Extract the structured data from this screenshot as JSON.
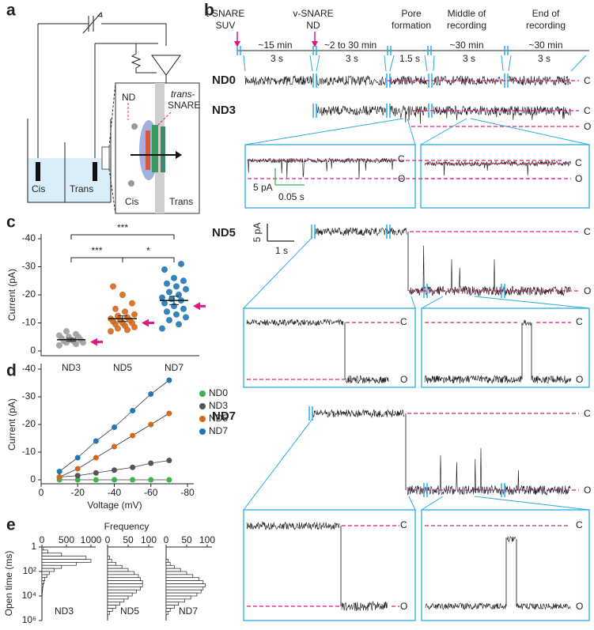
{
  "panel_labels": [
    "a",
    "b",
    "c",
    "d",
    "e"
  ],
  "diagram": {
    "nd": "ND",
    "trans_snare_1": "trans-",
    "trans_snare_2": "SNARE",
    "cis": "Cis",
    "trans": "Trans",
    "inset_cis": "Cis",
    "inset_trans": "Trans"
  },
  "recordings": {
    "stages": [
      [
        "t-SNARE",
        "SUV"
      ],
      [
        "v-SNARE",
        "ND"
      ],
      [
        "Pore",
        "formation"
      ],
      [
        "Middle of",
        "recording"
      ],
      [
        "End of",
        "recording"
      ]
    ],
    "durations": [
      "~15 min",
      "~2 to 30 min",
      "~30 min",
      "~30 min"
    ],
    "segment_spans": [
      "3 s",
      "3 s",
      "1.5 s",
      "3 s",
      "3 s"
    ],
    "rows": [
      "ND0",
      "ND3",
      "ND5",
      "ND7"
    ],
    "state_labels": {
      "closed": "C",
      "open": "O"
    },
    "scale_bars": [
      {
        "y": "5 pA",
        "x": "0.05 s"
      },
      {
        "y": "5 pA",
        "x": "1 s"
      }
    ]
  },
  "chart_data": [
    {
      "type": "strip",
      "ylabel": "Current (pA)",
      "categories": [
        "ND3",
        "ND5",
        "ND7"
      ],
      "colors": [
        "#9e9e9e",
        "#d2691e",
        "#1f77b4"
      ],
      "values": [
        [
          -2,
          -2.5,
          -3,
          -3,
          -3.5,
          -3.5,
          -4,
          -4,
          -4.5,
          -5,
          -5,
          -5.5,
          -6,
          -7
        ],
        [
          -7,
          -7.5,
          -8,
          -8.5,
          -9,
          -9.5,
          -10,
          -10,
          -10.5,
          -11,
          -11,
          -11.5,
          -12,
          -12.5,
          -13,
          -14,
          -15,
          -17,
          -20,
          -23
        ],
        [
          -8,
          -9.5,
          -11,
          -12,
          -13,
          -14,
          -15,
          -16,
          -17,
          -18,
          -18.5,
          -19,
          -20,
          -21,
          -22,
          -23,
          -24,
          -25,
          -26,
          -29,
          -31
        ]
      ],
      "means": [
        -4,
        -11.5,
        -18
      ],
      "sem": [
        0.5,
        1,
        1.5
      ],
      "highlight": [
        -3.2,
        -10,
        -16
      ],
      "highlight_color": "#e0197d",
      "significance": [
        "***",
        "*",
        "***"
      ],
      "ylim": [
        0,
        -40
      ],
      "yticks": [
        0,
        -10,
        -20,
        -30,
        -40
      ]
    },
    {
      "type": "line",
      "xlabel": "Voltage (mV)",
      "ylabel": "Current (pA)",
      "x": [
        -10,
        -20,
        -30,
        -40,
        -50,
        -60,
        -70
      ],
      "series": [
        {
          "name": "ND0",
          "color": "#3cb44b",
          "values": [
            0,
            0,
            0,
            0,
            0,
            0,
            0
          ]
        },
        {
          "name": "ND3",
          "color": "#555555",
          "values": [
            -1,
            -1.5,
            -2.5,
            -3.5,
            -4.5,
            -6,
            -7
          ]
        },
        {
          "name": "ND5",
          "color": "#d2691e",
          "values": [
            -1,
            -4,
            -8,
            -12,
            -16,
            -20,
            -24
          ]
        },
        {
          "name": "ND7",
          "color": "#1f77b4",
          "values": [
            -3,
            -8,
            -14,
            -19,
            -25,
            -31,
            -36
          ]
        }
      ],
      "xlim": [
        0,
        -80
      ],
      "xticks": [
        0,
        -20,
        -40,
        -60,
        -80
      ],
      "ylim": [
        0,
        -40
      ],
      "yticks": [
        0,
        -10,
        -20,
        -30,
        -40
      ],
      "legend": "upper right"
    },
    {
      "type": "histogram",
      "title": "ND3",
      "ylabel": "Open time (ms)",
      "orientation": "horizontal",
      "log_y": true,
      "y_inverted": true,
      "bins": [
        1,
        1.78,
        3.16,
        5.62,
        10,
        17.8,
        31.6,
        56.2,
        100,
        178,
        316,
        562,
        1000,
        1780,
        3160,
        5620,
        10000,
        17800,
        31600,
        56200,
        100000,
        178000,
        316000,
        562000,
        1000000
      ],
      "values": [
        30,
        120,
        400,
        900,
        1000,
        700,
        400,
        250,
        150,
        100,
        60,
        40,
        25,
        15,
        10,
        5,
        0,
        0,
        0,
        0,
        0,
        0,
        0,
        0
      ],
      "xlim": [
        0,
        1000
      ],
      "xticks": [
        0,
        500,
        1000
      ],
      "ylim": [
        1,
        1000000
      ],
      "yticks": [
        1,
        {
          "value": 100,
          "label": "10²"
        },
        {
          "value": 10000,
          "label": "10⁴"
        },
        {
          "value": 1000000,
          "label": "10⁶"
        }
      ]
    },
    {
      "type": "histogram",
      "title": "ND5",
      "xlabel": "Frequency",
      "orientation": "horizontal",
      "log_y": true,
      "y_inverted": true,
      "bins": [
        1,
        1.78,
        3.16,
        5.62,
        10,
        17.8,
        31.6,
        56.2,
        100,
        178,
        316,
        562,
        1000,
        1780,
        3160,
        5620,
        10000,
        17800,
        31600,
        56200,
        100000,
        178000,
        316000,
        562000,
        1000000
      ],
      "values": [
        0,
        0,
        0,
        5,
        10,
        20,
        35,
        50,
        65,
        75,
        80,
        85,
        85,
        80,
        70,
        60,
        50,
        40,
        30,
        20,
        12,
        5,
        0,
        0
      ],
      "xlim": [
        0,
        100
      ],
      "xticks": [
        0,
        50,
        100
      ],
      "ylim": [
        1,
        1000000
      ]
    },
    {
      "type": "histogram",
      "title": "ND7",
      "orientation": "horizontal",
      "log_y": true,
      "y_inverted": true,
      "bins": [
        1,
        1.78,
        3.16,
        5.62,
        10,
        17.8,
        31.6,
        56.2,
        100,
        178,
        316,
        562,
        1000,
        1780,
        3160,
        5620,
        10000,
        17800,
        31600,
        56200,
        100000,
        178000,
        316000,
        562000,
        1000000
      ],
      "values": [
        0,
        0,
        0,
        0,
        5,
        10,
        20,
        35,
        50,
        65,
        80,
        90,
        95,
        90,
        85,
        75,
        60,
        45,
        30,
        20,
        10,
        5,
        0,
        0
      ],
      "xlim": [
        0,
        100
      ],
      "xticks": [
        0,
        50,
        100
      ],
      "ylim": [
        1,
        1000000
      ]
    }
  ]
}
